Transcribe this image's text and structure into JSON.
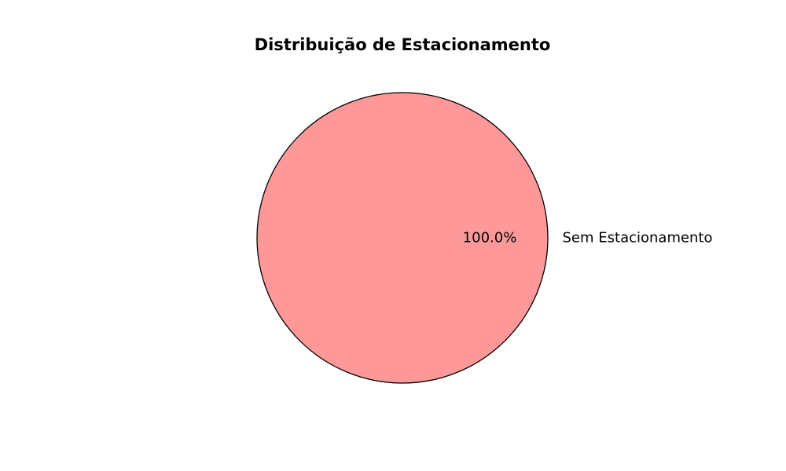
{
  "chart_data": {
    "type": "pie",
    "title": "Distribuição de Estacionamento",
    "slices": [
      {
        "label": "Sem Estacionamento",
        "value": 100.0,
        "percent_label": "100.0%",
        "color": "#ff9999"
      }
    ],
    "edge_color": "#000000",
    "legend": "none"
  }
}
